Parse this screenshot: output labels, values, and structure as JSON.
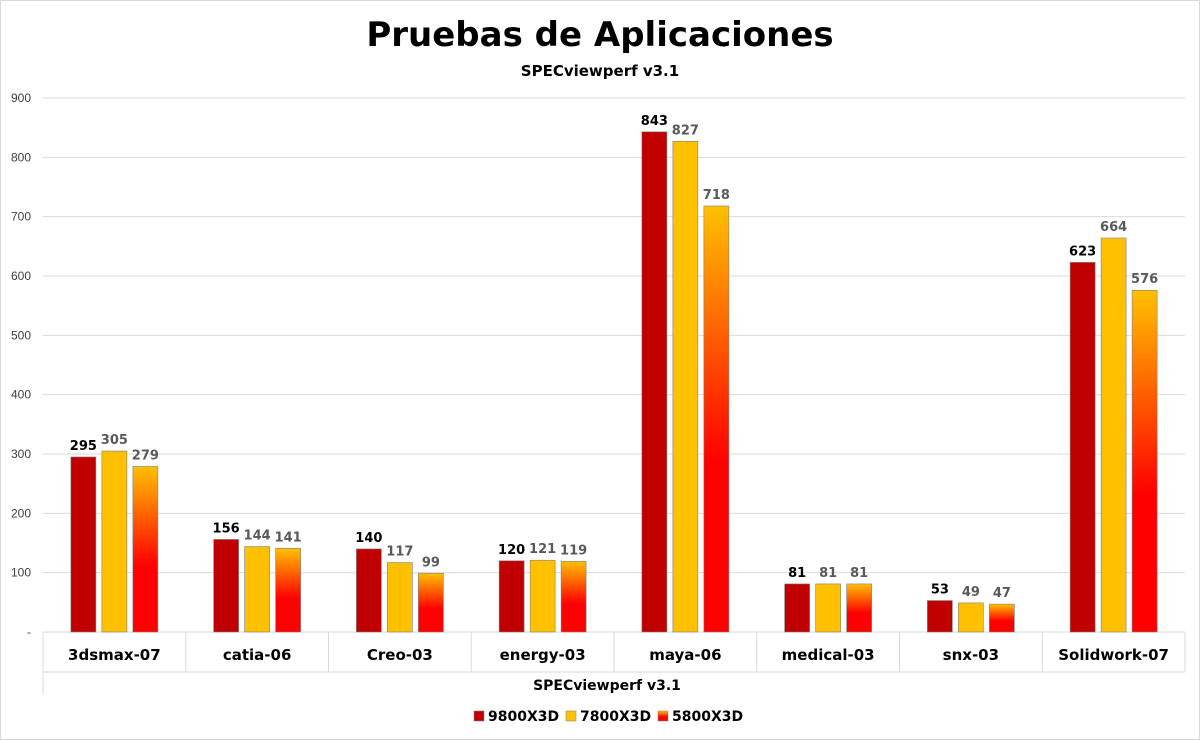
{
  "chart_data": {
    "type": "bar",
    "title": "Pruebas de Aplicaciones",
    "subtitle": "SPECviewperf v3.1",
    "xlabel": "SPECviewperf v3.1",
    "ylabel": "",
    "ylim": [
      0,
      900
    ],
    "yticks": [
      "-",
      "100",
      "200",
      "300",
      "400",
      "500",
      "600",
      "700",
      "800",
      "900"
    ],
    "grid": true,
    "legend_position": "bottom",
    "categories": [
      "3dsmax-07",
      "catia-06",
      "Creo-03",
      "energy-03",
      "maya-06",
      "medical-03",
      "snx-03",
      "Solidwork-07"
    ],
    "series": [
      {
        "name": "9800X3D",
        "values": [
          295,
          156,
          140,
          120,
          843,
          81,
          53,
          623
        ],
        "color": "#C00000",
        "label_color": "#000000"
      },
      {
        "name": "7800X3D",
        "values": [
          305,
          144,
          117,
          121,
          827,
          81,
          49,
          664
        ],
        "color": "#FFC000",
        "label_color": "#595959"
      },
      {
        "name": "5800X3D",
        "values": [
          279,
          141,
          99,
          119,
          718,
          81,
          47,
          576
        ],
        "color_gradient": [
          "#FFC000",
          "#FF0000"
        ],
        "label_color": "#595959"
      }
    ]
  }
}
